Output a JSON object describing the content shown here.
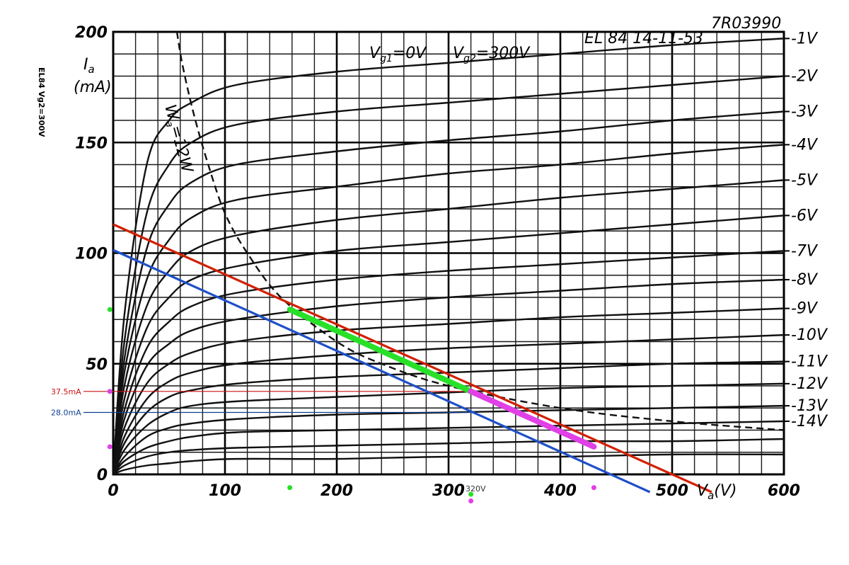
{
  "chart_data": {
    "type": "line",
    "title": "EL 84 14-11-53",
    "code": "7R03990",
    "side_text": "EL84 Vg2=300V",
    "conditions": {
      "g1": "V",
      "g1_sub": "g1",
      "g1_val": "=0V",
      "g2": "V",
      "g2_sub": "g2",
      "g2_val": "=300V"
    },
    "xlabel": "V",
    "xlabel_sub": "a",
    "xlabel_unit": "(V)",
    "ylabel": "I",
    "ylabel_sub": "a",
    "ylabel_unit": "(mA)",
    "xlim": [
      0,
      600
    ],
    "ylim": [
      0,
      200
    ],
    "x_ticks": [
      0,
      100,
      200,
      300,
      400,
      500,
      600
    ],
    "y_ticks": [
      0,
      50,
      100,
      150,
      200
    ],
    "x_tick_labels": [
      "0",
      "100",
      "200",
      "300",
      "400",
      "500",
      "600"
    ],
    "y_tick_labels": [
      "0",
      "50",
      "100",
      "150",
      "200"
    ],
    "grid": true,
    "grid_step_x": 20,
    "grid_step_y": 10,
    "plate_curves": [
      {
        "vg1": "-1V",
        "values": [
          [
            0,
            0
          ],
          [
            10,
            72
          ],
          [
            30,
            140
          ],
          [
            50,
            160
          ],
          [
            70,
            168
          ],
          [
            110,
            176
          ],
          [
            200,
            182
          ],
          [
            300,
            186
          ],
          [
            400,
            190
          ],
          [
            500,
            194
          ],
          [
            600,
            197
          ]
        ]
      },
      {
        "vg1": "-2V",
        "values": [
          [
            0,
            0
          ],
          [
            10,
            60
          ],
          [
            30,
            118
          ],
          [
            50,
            140
          ],
          [
            70,
            150
          ],
          [
            110,
            158
          ],
          [
            200,
            164
          ],
          [
            300,
            168
          ],
          [
            400,
            172
          ],
          [
            500,
            176
          ],
          [
            600,
            180
          ]
        ]
      },
      {
        "vg1": "-3V",
        "values": [
          [
            0,
            0
          ],
          [
            10,
            52
          ],
          [
            30,
            102
          ],
          [
            50,
            122
          ],
          [
            70,
            132
          ],
          [
            110,
            140
          ],
          [
            200,
            146
          ],
          [
            300,
            151
          ],
          [
            400,
            155
          ],
          [
            500,
            160
          ],
          [
            600,
            164
          ]
        ]
      },
      {
        "vg1": "-4V",
        "values": [
          [
            0,
            0
          ],
          [
            10,
            46
          ],
          [
            30,
            88
          ],
          [
            50,
            106
          ],
          [
            70,
            116
          ],
          [
            110,
            124
          ],
          [
            200,
            130
          ],
          [
            300,
            136
          ],
          [
            400,
            140
          ],
          [
            500,
            145
          ],
          [
            600,
            149
          ]
        ]
      },
      {
        "vg1": "-5V",
        "values": [
          [
            0,
            0
          ],
          [
            10,
            40
          ],
          [
            30,
            76
          ],
          [
            50,
            92
          ],
          [
            70,
            101
          ],
          [
            110,
            108
          ],
          [
            200,
            115
          ],
          [
            300,
            120
          ],
          [
            400,
            125
          ],
          [
            500,
            129
          ],
          [
            600,
            133
          ]
        ]
      },
      {
        "vg1": "-6V",
        "values": [
          [
            0,
            0
          ],
          [
            10,
            34
          ],
          [
            30,
            66
          ],
          [
            50,
            80
          ],
          [
            70,
            88
          ],
          [
            110,
            94
          ],
          [
            200,
            101
          ],
          [
            300,
            105
          ],
          [
            400,
            109
          ],
          [
            500,
            113
          ],
          [
            600,
            117
          ]
        ]
      },
      {
        "vg1": "-7V",
        "values": [
          [
            0,
            0
          ],
          [
            10,
            29
          ],
          [
            30,
            57
          ],
          [
            50,
            69
          ],
          [
            70,
            76
          ],
          [
            110,
            82
          ],
          [
            200,
            88
          ],
          [
            300,
            92
          ],
          [
            400,
            95
          ],
          [
            500,
            98
          ],
          [
            600,
            101
          ]
        ]
      },
      {
        "vg1": "-8V",
        "values": [
          [
            0,
            0
          ],
          [
            10,
            25
          ],
          [
            30,
            49
          ],
          [
            50,
            59
          ],
          [
            70,
            65
          ],
          [
            110,
            70
          ],
          [
            200,
            76
          ],
          [
            300,
            80
          ],
          [
            400,
            83
          ],
          [
            500,
            86
          ],
          [
            600,
            88
          ]
        ]
      },
      {
        "vg1": "-9V",
        "values": [
          [
            0,
            0
          ],
          [
            10,
            21
          ],
          [
            30,
            41
          ],
          [
            50,
            50
          ],
          [
            70,
            55
          ],
          [
            110,
            60
          ],
          [
            200,
            65
          ],
          [
            300,
            68
          ],
          [
            400,
            71
          ],
          [
            500,
            73
          ],
          [
            600,
            75
          ]
        ]
      },
      {
        "vg1": "-10V",
        "values": [
          [
            0,
            0
          ],
          [
            10,
            17
          ],
          [
            30,
            34
          ],
          [
            50,
            42
          ],
          [
            70,
            46
          ],
          [
            110,
            50
          ],
          [
            200,
            54
          ],
          [
            300,
            57
          ],
          [
            400,
            59
          ],
          [
            500,
            61
          ],
          [
            600,
            63
          ]
        ]
      },
      {
        "vg1": "-11V",
        "values": [
          [
            0,
            0
          ],
          [
            10,
            14
          ],
          [
            30,
            28
          ],
          [
            50,
            35
          ],
          [
            70,
            38
          ],
          [
            110,
            41
          ],
          [
            200,
            44
          ],
          [
            300,
            46
          ],
          [
            400,
            48
          ],
          [
            500,
            50
          ],
          [
            600,
            51
          ]
        ]
      },
      {
        "vg1": "-12V",
        "values": [
          [
            0,
            0
          ],
          [
            10,
            11
          ],
          [
            30,
            22
          ],
          [
            50,
            28
          ],
          [
            70,
            31
          ],
          [
            110,
            33
          ],
          [
            200,
            35
          ],
          [
            300,
            37
          ],
          [
            400,
            39
          ],
          [
            500,
            40
          ],
          [
            600,
            41
          ]
        ]
      },
      {
        "vg1": "-13V",
        "values": [
          [
            0,
            0
          ],
          [
            10,
            8
          ],
          [
            30,
            17
          ],
          [
            50,
            21
          ],
          [
            70,
            23
          ],
          [
            110,
            25
          ],
          [
            200,
            27
          ],
          [
            300,
            28
          ],
          [
            400,
            29
          ],
          [
            500,
            30
          ],
          [
            600,
            31
          ]
        ]
      },
      {
        "vg1": "-14V",
        "values": [
          [
            0,
            0
          ],
          [
            10,
            6
          ],
          [
            30,
            12
          ],
          [
            50,
            15
          ],
          [
            70,
            17
          ],
          [
            110,
            19
          ],
          [
            200,
            20
          ],
          [
            300,
            21
          ],
          [
            400,
            22
          ],
          [
            500,
            23
          ],
          [
            600,
            24
          ]
        ]
      },
      {
        "vg1": "",
        "values": [
          [
            0,
            0
          ],
          [
            10,
            4
          ],
          [
            30,
            8
          ],
          [
            50,
            10
          ],
          [
            70,
            11
          ],
          [
            110,
            12
          ],
          [
            200,
            13
          ],
          [
            300,
            14
          ],
          [
            400,
            15
          ],
          [
            500,
            15
          ],
          [
            600,
            16
          ]
        ]
      },
      {
        "vg1": "",
        "values": [
          [
            0,
            0
          ],
          [
            10,
            2
          ],
          [
            30,
            4
          ],
          [
            50,
            5
          ],
          [
            70,
            6
          ],
          [
            110,
            7
          ],
          [
            200,
            7
          ],
          [
            300,
            8
          ],
          [
            400,
            8
          ],
          [
            500,
            9
          ],
          [
            600,
            9
          ]
        ]
      }
    ],
    "dissipation_curve": {
      "label": "W",
      "label_sub": "a",
      "label_val": "=12W",
      "points": [
        [
          57,
          200
        ],
        [
          62,
          185
        ],
        [
          72,
          163
        ],
        [
          85,
          140
        ],
        [
          100,
          118
        ],
        [
          120,
          100
        ],
        [
          150,
          80
        ],
        [
          200,
          60
        ],
        [
          240,
          50
        ],
        [
          300,
          40
        ],
        [
          400,
          30
        ],
        [
          500,
          24
        ],
        [
          600,
          20
        ]
      ]
    },
    "load_lines": [
      {
        "color": "#d21f00",
        "points": [
          [
            0,
            113
          ],
          [
            500,
            0
          ]
        ]
      },
      {
        "color": "#1f50c8",
        "points": [
          [
            0,
            101.4
          ],
          [
            445,
            0
          ]
        ]
      }
    ],
    "segments": [
      {
        "color": "#28e028",
        "points": [
          [
            158,
            74.5
          ],
          [
            320,
            37.5
          ]
        ]
      },
      {
        "color": "#e040e6",
        "points": [
          [
            320,
            37.5
          ],
          [
            430,
            12.5
          ]
        ]
      }
    ],
    "reference_lines": [
      {
        "label": "37.5mA",
        "color": "#cc1111",
        "y": 37.5,
        "x_end": 320
      },
      {
        "label": "28.0mA",
        "color": "#0e3f8f",
        "y": 28.0,
        "x_end": 320
      }
    ],
    "markers": [
      {
        "color": "#28e028",
        "x": -3,
        "y": 74.5
      },
      {
        "color": "#28e028",
        "x": -3,
        "y": 37.5
      },
      {
        "color": "#e040e6",
        "x": -3,
        "y": 12.5
      },
      {
        "color": "#e040e6",
        "x": -3,
        "y": 37.5
      },
      {
        "color": "#28e028",
        "x": 158,
        "y": -6
      },
      {
        "color": "#e040e6",
        "x": 430,
        "y": -6
      },
      {
        "color": "#28e028",
        "x": 320,
        "y": -9
      },
      {
        "color": "#e040e6",
        "x": 320,
        "y": -12
      }
    ],
    "annotation_320": "320V",
    "colors": {
      "red": "#d21f00",
      "blue": "#1f50c8",
      "green": "#28e028",
      "magenta": "#e040e6",
      "ink": "#111111"
    }
  }
}
